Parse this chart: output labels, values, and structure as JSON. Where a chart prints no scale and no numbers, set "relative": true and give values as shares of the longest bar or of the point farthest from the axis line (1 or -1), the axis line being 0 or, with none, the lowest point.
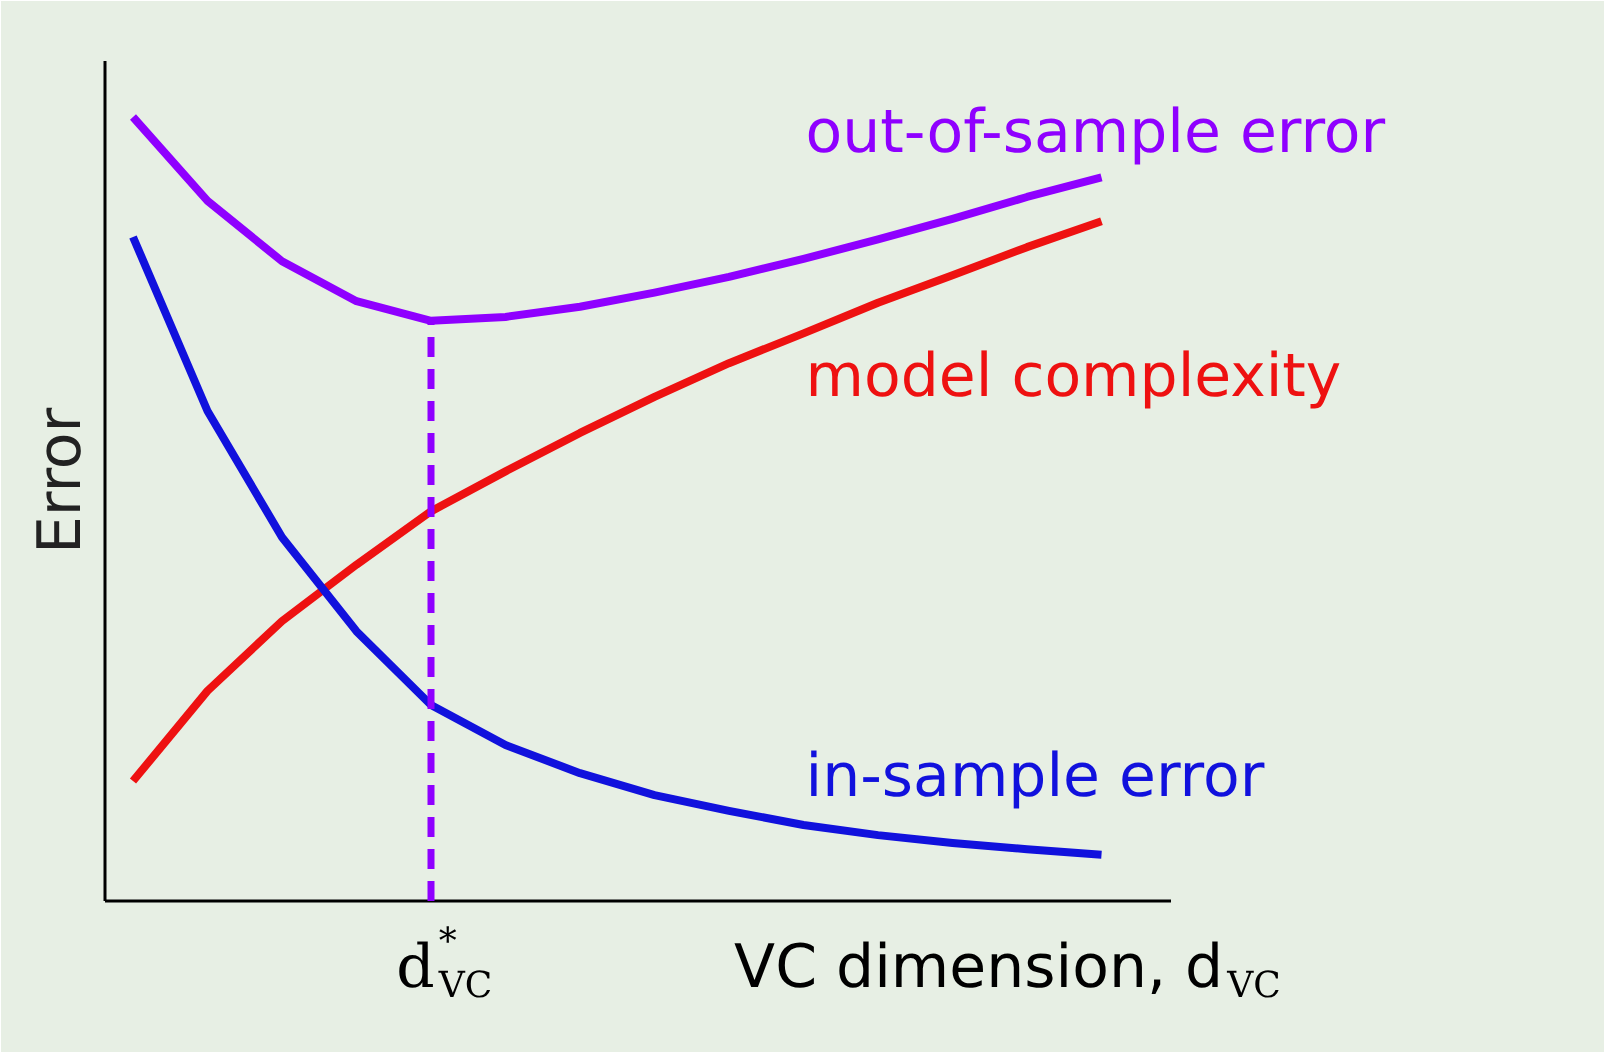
{
  "chart_data": {
    "type": "line",
    "relative": true,
    "xlabel": "VC dimension, d$_{VC}$",
    "ylabel": "Error",
    "categories": [
      null,
      null,
      null,
      null,
      null,
      null,
      null,
      null,
      null,
      null,
      null,
      null,
      null,
      null
    ],
    "series": [
      {
        "name": "out-of-sample error",
        "color": "#8f00ff",
        "values": [
          1.0,
          0.893,
          0.816,
          0.765,
          0.74,
          0.745,
          0.758,
          0.776,
          0.796,
          0.819,
          0.844,
          0.87,
          0.898,
          0.923
        ]
      },
      {
        "name": "model complexity",
        "color": "#ee1111",
        "values": [
          0.153,
          0.268,
          0.357,
          0.429,
          0.497,
          0.548,
          0.597,
          0.643,
          0.686,
          0.724,
          0.763,
          0.798,
          0.834,
          0.867
        ]
      },
      {
        "name": "in-sample error",
        "color": "#1111dd",
        "values": [
          0.847,
          0.625,
          0.464,
          0.344,
          0.25,
          0.199,
          0.163,
          0.135,
          0.115,
          0.097,
          0.084,
          0.074,
          0.066,
          0.059
        ]
      }
    ],
    "annotations": [
      "d$^{*}$$_{VC}$"
    ],
    "marker": "none",
    "line_style": "solid"
  }
}
